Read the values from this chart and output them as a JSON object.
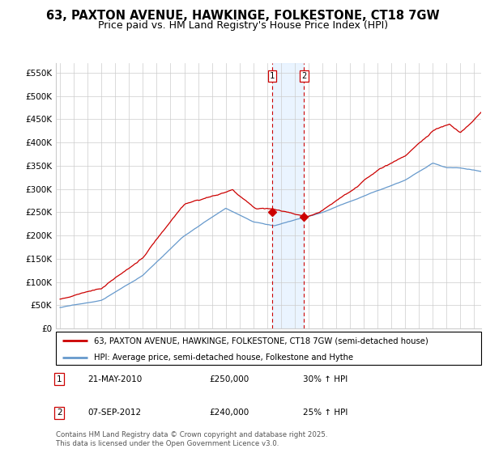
{
  "title": "63, PAXTON AVENUE, HAWKINGE, FOLKESTONE, CT18 7GW",
  "subtitle": "Price paid vs. HM Land Registry's House Price Index (HPI)",
  "ylabel_ticks": [
    "£0",
    "£50K",
    "£100K",
    "£150K",
    "£200K",
    "£250K",
    "£300K",
    "£350K",
    "£400K",
    "£450K",
    "£500K",
    "£550K"
  ],
  "ytick_values": [
    0,
    50000,
    100000,
    150000,
    200000,
    250000,
    300000,
    350000,
    400000,
    450000,
    500000,
    550000
  ],
  "ylim": [
    0,
    570000
  ],
  "xlim_start": 1994.7,
  "xlim_end": 2025.5,
  "sale1_x": 2010.38,
  "sale1_y": 250000,
  "sale1_label": "1",
  "sale2_x": 2012.67,
  "sale2_y": 240000,
  "sale2_label": "2",
  "line1_color": "#cc0000",
  "line2_color": "#6699cc",
  "shade_color": "#ddeeff",
  "vline_color": "#cc0000",
  "background_color": "#ffffff",
  "grid_color": "#cccccc",
  "legend1_label": "63, PAXTON AVENUE, HAWKINGE, FOLKESTONE, CT18 7GW (semi-detached house)",
  "legend2_label": "HPI: Average price, semi-detached house, Folkestone and Hythe",
  "annotation1": [
    "1",
    "21-MAY-2010",
    "£250,000",
    "30% ↑ HPI"
  ],
  "annotation2": [
    "2",
    "07-SEP-2012",
    "£240,000",
    "25% ↑ HPI"
  ],
  "footer": "Contains HM Land Registry data © Crown copyright and database right 2025.\nThis data is licensed under the Open Government Licence v3.0.",
  "title_fontsize": 10.5,
  "subtitle_fontsize": 9
}
